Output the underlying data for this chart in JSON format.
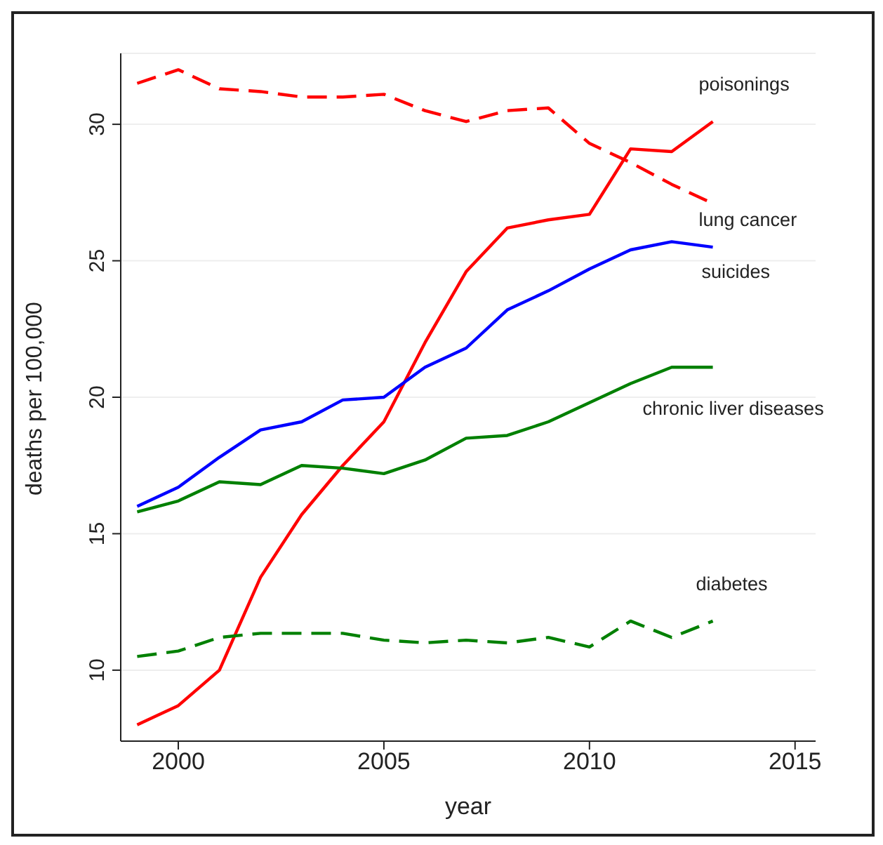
{
  "chart_data": {
    "type": "line",
    "xlabel": "year",
    "ylabel": "deaths per 100,000",
    "x": [
      1999,
      2000,
      2001,
      2002,
      2003,
      2004,
      2005,
      2006,
      2007,
      2008,
      2009,
      2010,
      2011,
      2012,
      2013
    ],
    "series": [
      {
        "name": "poisonings",
        "color": "#ff0000",
        "line_style": "solid",
        "values": [
          8.0,
          8.7,
          10.0,
          13.4,
          15.7,
          17.5,
          19.1,
          22.0,
          24.6,
          26.2,
          26.5,
          26.7,
          29.1,
          29.0,
          30.1
        ]
      },
      {
        "name": "lung cancer",
        "color": "#ff0000",
        "line_style": "dashed",
        "values": [
          31.5,
          32.0,
          31.3,
          31.2,
          31.0,
          31.0,
          31.1,
          30.5,
          30.1,
          30.5,
          30.6,
          29.3,
          28.6,
          27.8,
          27.1
        ]
      },
      {
        "name": "suicides",
        "color": "#0000ff",
        "line_style": "solid",
        "values": [
          16.0,
          16.7,
          17.8,
          18.8,
          19.1,
          19.9,
          20.0,
          21.1,
          21.8,
          23.2,
          23.9,
          24.7,
          25.4,
          25.7,
          25.5
        ]
      },
      {
        "name": "chronic liver diseases",
        "color": "#008000",
        "line_style": "solid",
        "values": [
          15.8,
          16.2,
          16.9,
          16.8,
          17.5,
          17.4,
          17.2,
          17.7,
          18.5,
          18.6,
          19.1,
          19.8,
          20.5,
          21.1,
          21.1
        ]
      },
      {
        "name": "diabetes",
        "color": "#008000",
        "line_style": "dashed",
        "values": [
          10.5,
          10.7,
          11.2,
          11.35,
          11.35,
          11.35,
          11.1,
          11.0,
          11.1,
          11.0,
          11.2,
          10.85,
          11.8,
          11.2,
          11.8
        ]
      }
    ],
    "xlim": [
      1998.6,
      2015.5
    ],
    "xticks": [
      2000,
      2005,
      2010,
      2015
    ],
    "ylim": [
      7.4,
      32.6
    ],
    "yticks": [
      10,
      15,
      20,
      25,
      30
    ],
    "grid": "y",
    "legend": false,
    "marker": "none"
  }
}
